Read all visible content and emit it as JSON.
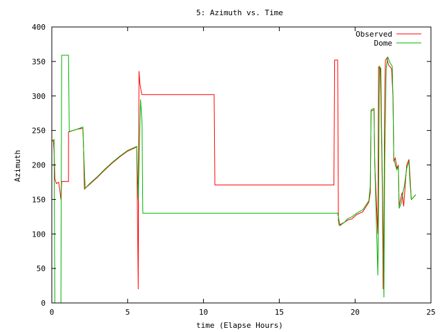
{
  "chart_data": {
    "type": "line",
    "title": "5: Azimuth vs. Time",
    "xlabel": "time (Elapse Hours)",
    "ylabel": "Azimuth",
    "xlim": [
      0,
      25
    ],
    "ylim": [
      0,
      400
    ],
    "xticks": [
      0,
      5,
      10,
      15,
      20,
      25
    ],
    "yticks": [
      0,
      50,
      100,
      150,
      200,
      250,
      300,
      350,
      400
    ],
    "grid": false,
    "legend": "top-right",
    "series": [
      {
        "name": "Observed",
        "color": "#ff0000",
        "points": [
          [
            0.0,
            235
          ],
          [
            0.1,
            235
          ],
          [
            0.15,
            220
          ],
          [
            0.2,
            180
          ],
          [
            0.3,
            173
          ],
          [
            0.45,
            175
          ],
          [
            0.55,
            160
          ],
          [
            0.6,
            150
          ],
          [
            0.65,
            176
          ],
          [
            1.1,
            176
          ],
          [
            1.1,
            248
          ],
          [
            1.4,
            250
          ],
          [
            1.7,
            252
          ],
          [
            2.05,
            253
          ],
          [
            2.1,
            220
          ],
          [
            2.15,
            165
          ],
          [
            2.5,
            172
          ],
          [
            3.0,
            182
          ],
          [
            3.5,
            193
          ],
          [
            4.0,
            203
          ],
          [
            4.5,
            212
          ],
          [
            5.0,
            220
          ],
          [
            5.6,
            226
          ],
          [
            5.65,
            125
          ],
          [
            5.7,
            20
          ],
          [
            5.72,
            200
          ],
          [
            5.75,
            336
          ],
          [
            5.8,
            320
          ],
          [
            5.9,
            305
          ],
          [
            5.95,
            302
          ],
          [
            10.7,
            302
          ],
          [
            10.75,
            171
          ],
          [
            18.6,
            171
          ],
          [
            18.65,
            352
          ],
          [
            18.85,
            352
          ],
          [
            18.9,
            120
          ],
          [
            18.95,
            113
          ],
          [
            19.3,
            117
          ],
          [
            19.5,
            120
          ],
          [
            19.8,
            122
          ],
          [
            20.1,
            128
          ],
          [
            20.5,
            132
          ],
          [
            20.9,
            146
          ],
          [
            21.0,
            160
          ],
          [
            21.05,
            278
          ],
          [
            21.25,
            280
          ],
          [
            21.3,
            200
          ],
          [
            21.4,
            150
          ],
          [
            21.5,
            100
          ],
          [
            21.55,
            342
          ],
          [
            21.65,
            340
          ],
          [
            21.7,
            300
          ],
          [
            21.75,
            230
          ],
          [
            21.8,
            160
          ],
          [
            21.85,
            20
          ],
          [
            21.9,
            100
          ],
          [
            21.95,
            300
          ],
          [
            22.0,
            352
          ],
          [
            22.1,
            355
          ],
          [
            22.2,
            345
          ],
          [
            22.4,
            340
          ],
          [
            22.5,
            300
          ],
          [
            22.55,
            205
          ],
          [
            22.65,
            210
          ],
          [
            22.75,
            195
          ],
          [
            22.85,
            200
          ],
          [
            22.9,
            140
          ],
          [
            23.0,
            150
          ],
          [
            23.1,
            160
          ],
          [
            23.2,
            140
          ],
          [
            23.3,
            170
          ],
          [
            23.4,
            200
          ],
          [
            23.55,
            208
          ],
          [
            23.6,
            190
          ],
          [
            23.7,
            150
          ],
          [
            23.8,
            152
          ],
          [
            24.0,
            157
          ]
        ]
      },
      {
        "name": "Dome",
        "color": "#00b000",
        "points": [
          [
            0.0,
            235
          ],
          [
            0.15,
            237
          ],
          [
            0.2,
            0
          ],
          [
            0.6,
            0
          ],
          [
            0.65,
            359
          ],
          [
            1.1,
            359
          ],
          [
            1.15,
            248
          ],
          [
            1.4,
            250
          ],
          [
            1.7,
            252
          ],
          [
            2.05,
            255
          ],
          [
            2.1,
            220
          ],
          [
            2.2,
            166
          ],
          [
            2.5,
            173
          ],
          [
            3.0,
            183
          ],
          [
            3.5,
            194
          ],
          [
            4.0,
            204
          ],
          [
            4.5,
            213
          ],
          [
            5.0,
            221
          ],
          [
            5.6,
            227
          ],
          [
            5.7,
            150
          ],
          [
            5.75,
            200
          ],
          [
            5.85,
            295
          ],
          [
            5.95,
            260
          ],
          [
            6.0,
            130
          ],
          [
            18.85,
            130
          ],
          [
            18.9,
            125
          ],
          [
            19.0,
            112
          ],
          [
            19.3,
            117
          ],
          [
            19.5,
            122
          ],
          [
            19.8,
            125
          ],
          [
            20.1,
            130
          ],
          [
            20.5,
            135
          ],
          [
            20.9,
            148
          ],
          [
            21.0,
            170
          ],
          [
            21.05,
            280
          ],
          [
            21.25,
            282
          ],
          [
            21.3,
            200
          ],
          [
            21.4,
            120
          ],
          [
            21.5,
            40
          ],
          [
            21.55,
            150
          ],
          [
            21.6,
            343
          ],
          [
            21.7,
            340
          ],
          [
            21.75,
            250
          ],
          [
            21.85,
            100
          ],
          [
            21.9,
            8
          ],
          [
            21.95,
            200
          ],
          [
            22.05,
            340
          ],
          [
            22.15,
            357
          ],
          [
            22.3,
            348
          ],
          [
            22.45,
            343
          ],
          [
            22.5,
            290
          ],
          [
            22.55,
            210
          ],
          [
            22.65,
            200
          ],
          [
            22.75,
            193
          ],
          [
            22.85,
            198
          ],
          [
            22.9,
            137
          ],
          [
            23.05,
            145
          ],
          [
            23.15,
            160
          ],
          [
            23.25,
            170
          ],
          [
            23.4,
            195
          ],
          [
            23.55,
            205
          ],
          [
            23.6,
            180
          ],
          [
            23.7,
            150
          ],
          [
            23.85,
            153
          ],
          [
            24.0,
            157
          ]
        ]
      }
    ]
  }
}
